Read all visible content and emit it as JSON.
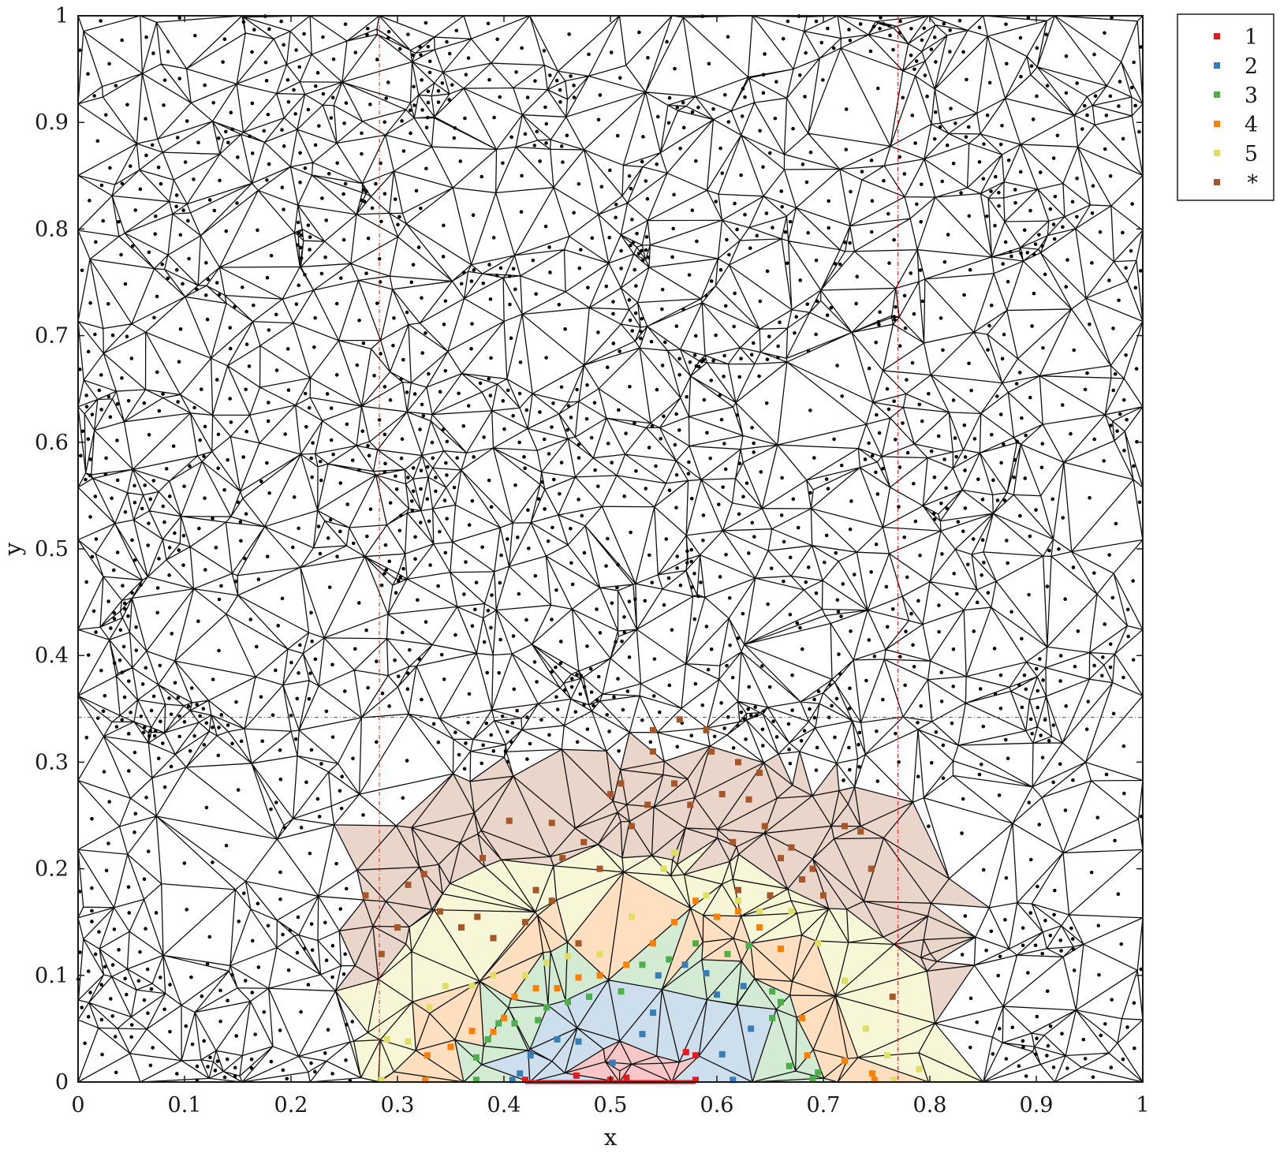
{
  "chart_data": {
    "type": "scatter",
    "title": "",
    "xlabel": "x",
    "ylabel": "y",
    "xlim": [
      0,
      1
    ],
    "ylim": [
      0,
      1
    ],
    "x_ticks": [
      "0",
      "0.1",
      "0.2",
      "0.3",
      "0.4",
      "0.5",
      "0.6",
      "0.7",
      "0.8",
      "0.9",
      "1"
    ],
    "y_ticks": [
      "0",
      "0.1",
      "0.2",
      "0.3",
      "0.4",
      "0.5",
      "0.6",
      "0.7",
      "0.8",
      "0.9",
      "1"
    ],
    "grid": false,
    "legend_position": "outside-top-right",
    "reference_lines": {
      "vertical_x": [
        0.283,
        0.77
      ],
      "horizontal_y": [
        0.342
      ]
    },
    "bottom_edge_segment": {
      "x": [
        0.42,
        0.58
      ],
      "y": 0,
      "color": "#e41a1c"
    },
    "series": [
      {
        "name": "1",
        "color": "#e41a1c",
        "points": [
          [
            0.42,
            0.002
          ],
          [
            0.468,
            0.006
          ],
          [
            0.5,
            0.002
          ],
          [
            0.515,
            0.004
          ],
          [
            0.58,
            0.002
          ],
          [
            0.571,
            0.028
          ],
          [
            0.58,
            0.025
          ]
        ]
      },
      {
        "name": "2",
        "color": "#377eb8",
        "points": [
          [
            0.408,
            0.002
          ],
          [
            0.415,
            0.008
          ],
          [
            0.425,
            0.025
          ],
          [
            0.45,
            0.04
          ],
          [
            0.47,
            0.038
          ],
          [
            0.502,
            0.018
          ],
          [
            0.53,
            0.045
          ],
          [
            0.54,
            0.065
          ],
          [
            0.545,
            0.1
          ],
          [
            0.57,
            0.11
          ],
          [
            0.59,
            0.102
          ],
          [
            0.6,
            0.082
          ],
          [
            0.605,
            0.026
          ],
          [
            0.615,
            0.002
          ],
          [
            0.625,
            0.09
          ],
          [
            0.632,
            0.05
          ]
        ]
      },
      {
        "name": "3",
        "color": "#4daf4a",
        "points": [
          [
            0.374,
            0.002
          ],
          [
            0.374,
            0.023
          ],
          [
            0.385,
            0.04
          ],
          [
            0.395,
            0.055
          ],
          [
            0.41,
            0.055
          ],
          [
            0.432,
            0.058
          ],
          [
            0.44,
            0.07
          ],
          [
            0.46,
            0.075
          ],
          [
            0.48,
            0.08
          ],
          [
            0.51,
            0.085
          ],
          [
            0.53,
            0.11
          ],
          [
            0.555,
            0.115
          ],
          [
            0.58,
            0.13
          ],
          [
            0.61,
            0.12
          ],
          [
            0.63,
            0.128
          ],
          [
            0.652,
            0.06
          ],
          [
            0.652,
            0.085
          ],
          [
            0.66,
            0.075
          ],
          [
            0.668,
            0.015
          ],
          [
            0.69,
            0.003
          ],
          [
            0.695,
            0.009
          ]
        ]
      },
      {
        "name": "4",
        "color": "#ff7f00",
        "points": [
          [
            0.326,
            0.002
          ],
          [
            0.328,
            0.025
          ],
          [
            0.35,
            0.033
          ],
          [
            0.37,
            0.048
          ],
          [
            0.39,
            0.047
          ],
          [
            0.4,
            0.06
          ],
          [
            0.41,
            0.08
          ],
          [
            0.43,
            0.088
          ],
          [
            0.45,
            0.088
          ],
          [
            0.47,
            0.098
          ],
          [
            0.49,
            0.1
          ],
          [
            0.515,
            0.11
          ],
          [
            0.54,
            0.13
          ],
          [
            0.56,
            0.15
          ],
          [
            0.58,
            0.17
          ],
          [
            0.6,
            0.155
          ],
          [
            0.62,
            0.16
          ],
          [
            0.64,
            0.145
          ],
          [
            0.66,
            0.125
          ],
          [
            0.68,
            0.06
          ],
          [
            0.685,
            0.025
          ],
          [
            0.72,
            0.02
          ],
          [
            0.746,
            0.008
          ],
          [
            0.748,
            0.002
          ]
        ]
      },
      {
        "name": "5",
        "color": "#dede63",
        "points": [
          [
            0.285,
            0.002
          ],
          [
            0.29,
            0.04
          ],
          [
            0.31,
            0.038
          ],
          [
            0.33,
            0.07
          ],
          [
            0.345,
            0.09
          ],
          [
            0.37,
            0.09
          ],
          [
            0.39,
            0.1
          ],
          [
            0.42,
            0.1
          ],
          [
            0.44,
            0.112
          ],
          [
            0.46,
            0.118
          ],
          [
            0.49,
            0.12
          ],
          [
            0.52,
            0.155
          ],
          [
            0.55,
            0.2
          ],
          [
            0.56,
            0.215
          ],
          [
            0.59,
            0.175
          ],
          [
            0.62,
            0.17
          ],
          [
            0.64,
            0.16
          ],
          [
            0.67,
            0.16
          ],
          [
            0.695,
            0.13
          ],
          [
            0.72,
            0.095
          ],
          [
            0.74,
            0.05
          ],
          [
            0.76,
            0.025
          ],
          [
            0.766,
            0.002
          ],
          [
            0.79,
            0.012
          ]
        ]
      },
      {
        "name": "*",
        "color": "#a65628",
        "points": [
          [
            0.27,
            0.175
          ],
          [
            0.285,
            0.12
          ],
          [
            0.3,
            0.145
          ],
          [
            0.31,
            0.185
          ],
          [
            0.325,
            0.195
          ],
          [
            0.34,
            0.16
          ],
          [
            0.36,
            0.145
          ],
          [
            0.375,
            0.155
          ],
          [
            0.39,
            0.135
          ],
          [
            0.38,
            0.21
          ],
          [
            0.405,
            0.245
          ],
          [
            0.42,
            0.15
          ],
          [
            0.43,
            0.18
          ],
          [
            0.445,
            0.17
          ],
          [
            0.445,
            0.243
          ],
          [
            0.455,
            0.21
          ],
          [
            0.47,
            0.13
          ],
          [
            0.475,
            0.225
          ],
          [
            0.49,
            0.2
          ],
          [
            0.5,
            0.27
          ],
          [
            0.51,
            0.28
          ],
          [
            0.52,
            0.24
          ],
          [
            0.535,
            0.26
          ],
          [
            0.54,
            0.31
          ],
          [
            0.54,
            0.33
          ],
          [
            0.56,
            0.28
          ],
          [
            0.565,
            0.34
          ],
          [
            0.575,
            0.26
          ],
          [
            0.59,
            0.33
          ],
          [
            0.595,
            0.31
          ],
          [
            0.605,
            0.27
          ],
          [
            0.615,
            0.225
          ],
          [
            0.62,
            0.3
          ],
          [
            0.63,
            0.265
          ],
          [
            0.64,
            0.29
          ],
          [
            0.645,
            0.24
          ],
          [
            0.66,
            0.21
          ],
          [
            0.67,
            0.22
          ],
          [
            0.68,
            0.19
          ],
          [
            0.69,
            0.2
          ],
          [
            0.7,
            0.175
          ],
          [
            0.72,
            0.24
          ],
          [
            0.735,
            0.235
          ],
          [
            0.745,
            0.2
          ],
          [
            0.765,
            0.08
          ],
          [
            0.65,
            0.175
          ],
          [
            0.62,
            0.18
          ]
        ]
      }
    ],
    "mesh_vertex_count": 1000,
    "mesh_centroid_markers": true
  }
}
